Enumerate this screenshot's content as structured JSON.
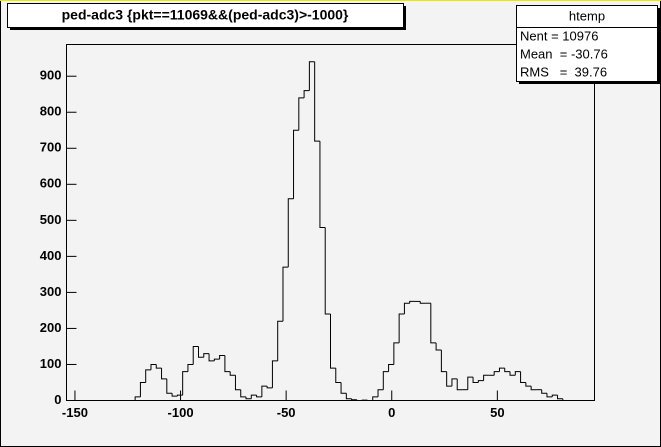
{
  "chart_data": {
    "type": "histogram",
    "title": "ped-adc3 {pkt==11069&&(ped-adc3)>-1000}",
    "stats": {
      "name": "htemp",
      "lines": [
        "Nent = 10976",
        "Mean  = -30.76",
        "RMS   =  39.76"
      ]
    },
    "color": "#000000",
    "bins": [
      -154,
      -151.5,
      -149,
      -146.5,
      -144,
      -141.5,
      -139,
      -136.5,
      -134,
      -131.5,
      -129,
      -126.5,
      -124,
      -121.5,
      -119,
      -116.5,
      -114,
      -111.5,
      -109,
      -106.5,
      -104,
      -101.5,
      -99,
      -96.5,
      -94,
      -91.5,
      -89,
      -86.5,
      -84,
      -81.5,
      -79,
      -76.5,
      -74,
      -71.5,
      -69,
      -66.5,
      -64,
      -61.5,
      -59,
      -56.5,
      -54,
      -51.5,
      -49,
      -46.5,
      -44,
      -41.5,
      -39,
      -36.5,
      -34,
      -31.5,
      -29,
      -26.5,
      -24,
      -21.5,
      -19,
      -16.5,
      -14,
      -11.5,
      -9,
      -6.5,
      -4,
      -1.5,
      1,
      3.5,
      6,
      8.5,
      11,
      13.5,
      16,
      18.5,
      21,
      23.5,
      26,
      28.5,
      31,
      33.5,
      36,
      38.5,
      41,
      43.5,
      46,
      48.5,
      51,
      53.5,
      56,
      58.5,
      61,
      63.5,
      66,
      68.5,
      71,
      73.5,
      76,
      78.5,
      81,
      83.5,
      86,
      88.5,
      91,
      93.5,
      96
    ],
    "values": [
      0,
      0,
      0,
      0,
      0,
      0,
      0,
      0,
      0,
      0,
      0,
      0,
      0,
      10,
      50,
      85,
      100,
      90,
      60,
      20,
      12,
      15,
      80,
      100,
      150,
      120,
      130,
      110,
      115,
      125,
      80,
      70,
      30,
      10,
      5,
      15,
      10,
      40,
      35,
      110,
      220,
      370,
      560,
      750,
      840,
      860,
      940,
      720,
      480,
      240,
      90,
      50,
      20,
      5,
      2,
      0,
      1,
      0,
      10,
      30,
      80,
      100,
      160,
      240,
      270,
      275,
      275,
      270,
      270,
      160,
      140,
      80,
      40,
      60,
      30,
      30,
      65,
      50,
      55,
      70,
      70,
      80,
      90,
      80,
      70,
      80,
      50,
      40,
      30,
      30,
      20,
      10,
      15,
      5,
      0,
      0,
      0,
      0,
      0,
      0
    ],
    "xlim": [
      -154,
      96
    ],
    "xticks": [
      -150,
      -100,
      -50,
      0,
      50
    ],
    "ylim": [
      0,
      988
    ],
    "yticks": [
      0,
      100,
      200,
      300,
      400,
      500,
      600,
      700,
      800,
      900
    ]
  }
}
